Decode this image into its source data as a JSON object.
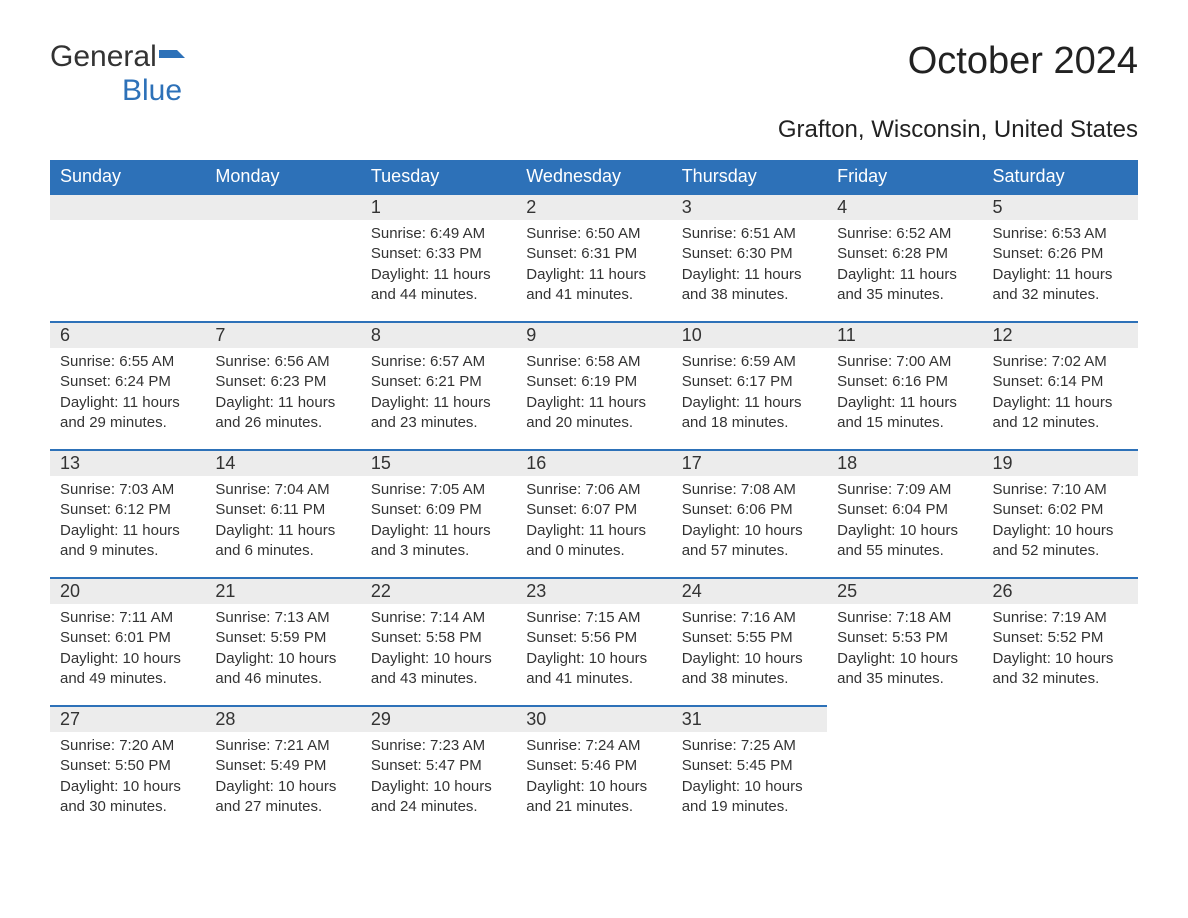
{
  "logo": {
    "text1": "General",
    "text2": "Blue"
  },
  "title": "October 2024",
  "location": "Grafton, Wisconsin, United States",
  "colors": {
    "header_bg": "#2d71b8",
    "header_text": "#ffffff",
    "daynum_bg": "#ececec",
    "daynum_border": "#2d71b8",
    "body_text": "#333333",
    "page_bg": "#ffffff"
  },
  "day_names": [
    "Sunday",
    "Monday",
    "Tuesday",
    "Wednesday",
    "Thursday",
    "Friday",
    "Saturday"
  ],
  "weeks": [
    [
      null,
      null,
      {
        "n": "1",
        "sunrise": "6:49 AM",
        "sunset": "6:33 PM",
        "daylight": "11 hours and 44 minutes."
      },
      {
        "n": "2",
        "sunrise": "6:50 AM",
        "sunset": "6:31 PM",
        "daylight": "11 hours and 41 minutes."
      },
      {
        "n": "3",
        "sunrise": "6:51 AM",
        "sunset": "6:30 PM",
        "daylight": "11 hours and 38 minutes."
      },
      {
        "n": "4",
        "sunrise": "6:52 AM",
        "sunset": "6:28 PM",
        "daylight": "11 hours and 35 minutes."
      },
      {
        "n": "5",
        "sunrise": "6:53 AM",
        "sunset": "6:26 PM",
        "daylight": "11 hours and 32 minutes."
      }
    ],
    [
      {
        "n": "6",
        "sunrise": "6:55 AM",
        "sunset": "6:24 PM",
        "daylight": "11 hours and 29 minutes."
      },
      {
        "n": "7",
        "sunrise": "6:56 AM",
        "sunset": "6:23 PM",
        "daylight": "11 hours and 26 minutes."
      },
      {
        "n": "8",
        "sunrise": "6:57 AM",
        "sunset": "6:21 PM",
        "daylight": "11 hours and 23 minutes."
      },
      {
        "n": "9",
        "sunrise": "6:58 AM",
        "sunset": "6:19 PM",
        "daylight": "11 hours and 20 minutes."
      },
      {
        "n": "10",
        "sunrise": "6:59 AM",
        "sunset": "6:17 PM",
        "daylight": "11 hours and 18 minutes."
      },
      {
        "n": "11",
        "sunrise": "7:00 AM",
        "sunset": "6:16 PM",
        "daylight": "11 hours and 15 minutes."
      },
      {
        "n": "12",
        "sunrise": "7:02 AM",
        "sunset": "6:14 PM",
        "daylight": "11 hours and 12 minutes."
      }
    ],
    [
      {
        "n": "13",
        "sunrise": "7:03 AM",
        "sunset": "6:12 PM",
        "daylight": "11 hours and 9 minutes."
      },
      {
        "n": "14",
        "sunrise": "7:04 AM",
        "sunset": "6:11 PM",
        "daylight": "11 hours and 6 minutes."
      },
      {
        "n": "15",
        "sunrise": "7:05 AM",
        "sunset": "6:09 PM",
        "daylight": "11 hours and 3 minutes."
      },
      {
        "n": "16",
        "sunrise": "7:06 AM",
        "sunset": "6:07 PM",
        "daylight": "11 hours and 0 minutes."
      },
      {
        "n": "17",
        "sunrise": "7:08 AM",
        "sunset": "6:06 PM",
        "daylight": "10 hours and 57 minutes."
      },
      {
        "n": "18",
        "sunrise": "7:09 AM",
        "sunset": "6:04 PM",
        "daylight": "10 hours and 55 minutes."
      },
      {
        "n": "19",
        "sunrise": "7:10 AM",
        "sunset": "6:02 PM",
        "daylight": "10 hours and 52 minutes."
      }
    ],
    [
      {
        "n": "20",
        "sunrise": "7:11 AM",
        "sunset": "6:01 PM",
        "daylight": "10 hours and 49 minutes."
      },
      {
        "n": "21",
        "sunrise": "7:13 AM",
        "sunset": "5:59 PM",
        "daylight": "10 hours and 46 minutes."
      },
      {
        "n": "22",
        "sunrise": "7:14 AM",
        "sunset": "5:58 PM",
        "daylight": "10 hours and 43 minutes."
      },
      {
        "n": "23",
        "sunrise": "7:15 AM",
        "sunset": "5:56 PM",
        "daylight": "10 hours and 41 minutes."
      },
      {
        "n": "24",
        "sunrise": "7:16 AM",
        "sunset": "5:55 PM",
        "daylight": "10 hours and 38 minutes."
      },
      {
        "n": "25",
        "sunrise": "7:18 AM",
        "sunset": "5:53 PM",
        "daylight": "10 hours and 35 minutes."
      },
      {
        "n": "26",
        "sunrise": "7:19 AM",
        "sunset": "5:52 PM",
        "daylight": "10 hours and 32 minutes."
      }
    ],
    [
      {
        "n": "27",
        "sunrise": "7:20 AM",
        "sunset": "5:50 PM",
        "daylight": "10 hours and 30 minutes."
      },
      {
        "n": "28",
        "sunrise": "7:21 AM",
        "sunset": "5:49 PM",
        "daylight": "10 hours and 27 minutes."
      },
      {
        "n": "29",
        "sunrise": "7:23 AM",
        "sunset": "5:47 PM",
        "daylight": "10 hours and 24 minutes."
      },
      {
        "n": "30",
        "sunrise": "7:24 AM",
        "sunset": "5:46 PM",
        "daylight": "10 hours and 21 minutes."
      },
      {
        "n": "31",
        "sunrise": "7:25 AM",
        "sunset": "5:45 PM",
        "daylight": "10 hours and 19 minutes."
      },
      null,
      null
    ]
  ],
  "labels": {
    "sunrise": "Sunrise: ",
    "sunset": "Sunset: ",
    "daylight": "Daylight: "
  }
}
